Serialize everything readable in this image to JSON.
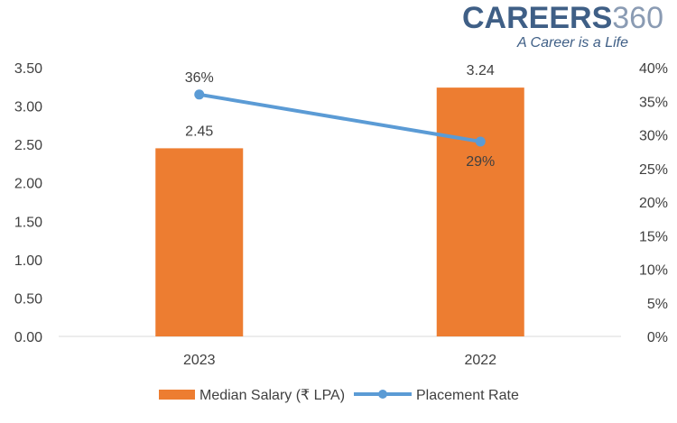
{
  "logo": {
    "brand": "CAREERS",
    "number": "360",
    "tagline": "A Career is a Life",
    "brand_color": "#3f5f86",
    "number_color": "#8a9bb3"
  },
  "chart_data": {
    "type": "bar",
    "categories": [
      "2023",
      "2022"
    ],
    "series": [
      {
        "name": "Median Salary (₹ LPA)",
        "type": "bar",
        "axis": "left",
        "values": [
          2.45,
          3.24
        ],
        "labels": [
          "2.45",
          "3.24"
        ],
        "color": "#ed7d31"
      },
      {
        "name": "Placement Rate",
        "type": "line",
        "axis": "right",
        "values": [
          36,
          29
        ],
        "labels": [
          "36%",
          "29%"
        ],
        "color": "#5b9bd5"
      }
    ],
    "y_left": {
      "ylim": [
        0,
        3.5
      ],
      "ticks": [
        "0.00",
        "0.50",
        "1.00",
        "1.50",
        "2.00",
        "2.50",
        "3.00",
        "3.50"
      ]
    },
    "y_right": {
      "ylim": [
        0,
        40
      ],
      "ticks": [
        "0%",
        "5%",
        "10%",
        "15%",
        "20%",
        "25%",
        "30%",
        "35%",
        "40%"
      ]
    },
    "legend": "bottom",
    "grid": false
  }
}
